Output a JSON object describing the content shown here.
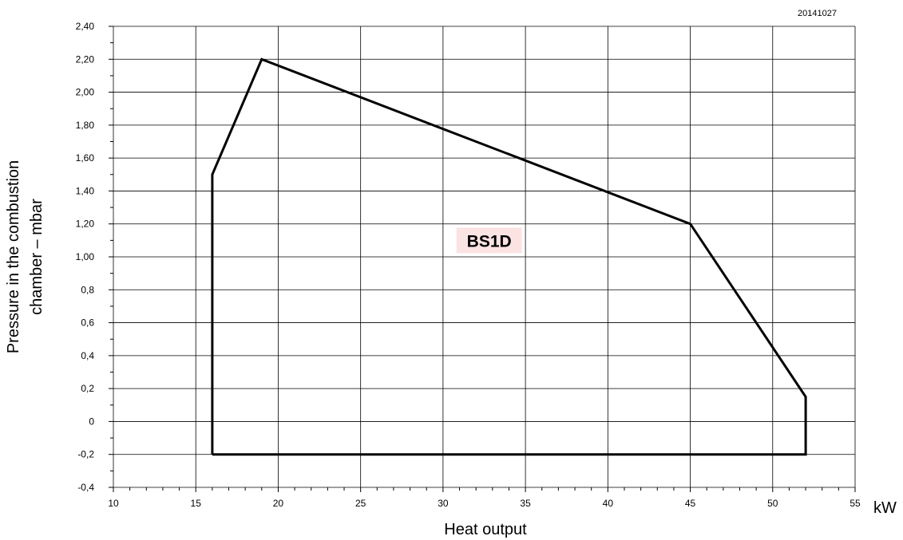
{
  "chart_data": {
    "type": "area",
    "title": "",
    "document_code": "20141027",
    "xlabel": "Heat output",
    "x_unit": "kW",
    "ylabel_lines": [
      "Pressure in the combustion",
      "chamber – mbar"
    ],
    "xlim": [
      10,
      55
    ],
    "ylim": [
      -0.4,
      2.4
    ],
    "x_ticks": [
      10,
      15,
      20,
      25,
      30,
      35,
      40,
      45,
      50,
      55
    ],
    "x_tick_labels": [
      "10",
      "15",
      "20",
      "25",
      "30",
      "35",
      "40",
      "45",
      "50",
      "55"
    ],
    "y_ticks": [
      -0.4,
      -0.2,
      0,
      0.2,
      0.4,
      0.6,
      0.8,
      1.0,
      1.2,
      1.4,
      1.6,
      1.8,
      2.0,
      2.2,
      2.4
    ],
    "y_tick_labels": [
      "-0,4",
      "-0,2",
      "0",
      "0,2",
      "0,4",
      "0,6",
      "0,8",
      "1,00",
      "1,20",
      "1,40",
      "1,60",
      "1,80",
      "2,00",
      "2,20",
      "2,40"
    ],
    "grid": true,
    "series": [
      {
        "name": "BS1D",
        "points": [
          [
            16,
            -0.2
          ],
          [
            16,
            1.5
          ],
          [
            19,
            2.2
          ],
          [
            45,
            1.2
          ],
          [
            52,
            0.15
          ],
          [
            52,
            -0.2
          ],
          [
            16,
            -0.2
          ]
        ]
      }
    ],
    "region_label": {
      "text": "BS1D",
      "x": 32.8,
      "y": 1.1
    },
    "colors": {
      "line": "#000000",
      "label_bg": "#fbe3e3",
      "grid": "#000000"
    }
  }
}
